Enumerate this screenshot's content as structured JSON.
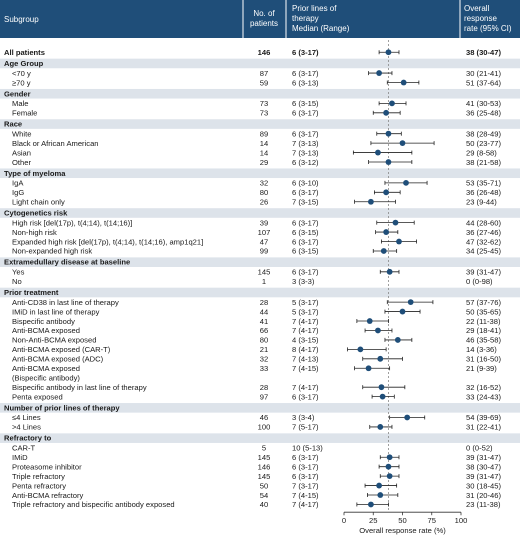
{
  "headers": {
    "subgroup": "Subgroup",
    "patients": [
      "No. of",
      "patients"
    ],
    "therapy": [
      "Prior lines of",
      "therapy",
      "Median (Range)"
    ],
    "orr": [
      "Overall",
      "response",
      "rate (95% CI)"
    ]
  },
  "colors": {
    "header_bg": "#1f4e79",
    "section_bg": "#dde3ea",
    "marker": "#1f4e79",
    "ci": "#222222"
  },
  "chart_data": {
    "type": "forest",
    "xlabel": "Overall response rate (%)",
    "xlim": [
      0,
      100
    ],
    "xticks": [
      0,
      25,
      50,
      75,
      100
    ],
    "reference_line": 38,
    "rows": [
      {
        "kind": "overall",
        "label": "All patients",
        "n": "146",
        "median": "6 (3-17)",
        "orr": "38 (30-47)",
        "est": 38,
        "lo": 30,
        "hi": 47
      },
      {
        "kind": "section",
        "label": "Age Group"
      },
      {
        "kind": "item",
        "label": "<70 y",
        "n": "87",
        "median": "6 (3-17)",
        "orr": "30 (21-41)",
        "est": 30,
        "lo": 21,
        "hi": 41
      },
      {
        "kind": "item",
        "label": "≥70 y",
        "n": "59",
        "median": "6 (3-13)",
        "orr": "51 (37-64)",
        "est": 51,
        "lo": 37,
        "hi": 64
      },
      {
        "kind": "section",
        "label": "Gender"
      },
      {
        "kind": "item",
        "label": "Male",
        "n": "73",
        "median": "6 (3-15)",
        "orr": "41 (30-53)",
        "est": 41,
        "lo": 30,
        "hi": 53
      },
      {
        "kind": "item",
        "label": "Female",
        "n": "73",
        "median": "6 (3-17)",
        "orr": "36 (25-48)",
        "est": 36,
        "lo": 25,
        "hi": 48
      },
      {
        "kind": "section",
        "label": "Race"
      },
      {
        "kind": "item",
        "label": "White",
        "n": "89",
        "median": "6 (3-17)",
        "orr": "38 (28-49)",
        "est": 38,
        "lo": 28,
        "hi": 49
      },
      {
        "kind": "item",
        "label": "Black or African American",
        "n": "14",
        "median": "7 (3-13)",
        "orr": "50 (23-77)",
        "est": 50,
        "lo": 23,
        "hi": 77
      },
      {
        "kind": "item",
        "label": "Asian",
        "n": "14",
        "median": "7 (3-13)",
        "orr": "29 (8-58)",
        "est": 29,
        "lo": 8,
        "hi": 58
      },
      {
        "kind": "item",
        "label": "Other",
        "n": "29",
        "median": "6 (3-12)",
        "orr": "38 (21-58)",
        "est": 38,
        "lo": 21,
        "hi": 58
      },
      {
        "kind": "section",
        "label": "Type of myeloma"
      },
      {
        "kind": "item",
        "label": "IgA",
        "n": "32",
        "median": "6 (3-10)",
        "orr": "53 (35-71)",
        "est": 53,
        "lo": 35,
        "hi": 71
      },
      {
        "kind": "item",
        "label": "IgG",
        "n": "80",
        "median": "6 (3-17)",
        "orr": "36 (26-48)",
        "est": 36,
        "lo": 26,
        "hi": 48
      },
      {
        "kind": "item",
        "label": "Light chain only",
        "n": "26",
        "median": "7 (3-15)",
        "orr": "23 (9-44)",
        "est": 23,
        "lo": 9,
        "hi": 44
      },
      {
        "kind": "section",
        "label": "Cytogenetics risk"
      },
      {
        "kind": "item",
        "label": "High risk [del(17p), t(4;14), t(14;16)]",
        "n": "39",
        "median": "6 (3-17)",
        "orr": "44 (28-60)",
        "est": 44,
        "lo": 28,
        "hi": 60
      },
      {
        "kind": "item",
        "label": "Non-high risk",
        "n": "107",
        "median": "6 (3-15)",
        "orr": "36 (27-46)",
        "est": 36,
        "lo": 27,
        "hi": 46
      },
      {
        "kind": "item",
        "label": "Expanded high risk [del(17p), t(4;14), t(14;16), amp1q21]",
        "n": "47",
        "median": "6 (3-17)",
        "orr": "47 (32-62)",
        "est": 47,
        "lo": 32,
        "hi": 62
      },
      {
        "kind": "item",
        "label": "Non-expanded high risk",
        "n": "99",
        "median": "6 (3-15)",
        "orr": "34 (25-45)",
        "est": 34,
        "lo": 25,
        "hi": 45
      },
      {
        "kind": "section",
        "label": "Extramedullary disease at baseline"
      },
      {
        "kind": "item",
        "label": "Yes",
        "n": "145",
        "median": "6 (3-17)",
        "orr": "39 (31-47)",
        "est": 39,
        "lo": 31,
        "hi": 47
      },
      {
        "kind": "item",
        "label": "No",
        "n": "1",
        "median": "3 (3-3)",
        "orr": "0 (0-98)",
        "est": null,
        "lo": null,
        "hi": null
      },
      {
        "kind": "section",
        "label": "Prior treatment"
      },
      {
        "kind": "item",
        "label": "Anti-CD38 in last line of therapy",
        "n": "28",
        "median": "5 (3-17)",
        "orr": "57 (37-76)",
        "est": 57,
        "lo": 37,
        "hi": 76
      },
      {
        "kind": "item",
        "label": "IMiD in last line of therapy",
        "n": "44",
        "median": "5 (3-17)",
        "orr": "50 (35-65)",
        "est": 50,
        "lo": 35,
        "hi": 65
      },
      {
        "kind": "item",
        "label": "Bispecific antibody",
        "n": "41",
        "median": "7 (4-17)",
        "orr": "22 (11-38)",
        "est": 22,
        "lo": 11,
        "hi": 38
      },
      {
        "kind": "item",
        "label": "Anti-BCMA exposed",
        "n": "66",
        "median": "7 (4-17)",
        "orr": "29 (18-41)",
        "est": 29,
        "lo": 18,
        "hi": 41
      },
      {
        "kind": "item",
        "label": "Non-Anti-BCMA exposed",
        "n": "80",
        "median": "4 (3-15)",
        "orr": "46 (35-58)",
        "est": 46,
        "lo": 35,
        "hi": 58
      },
      {
        "kind": "item",
        "label": "Anti-BCMA exposed (CAR-T)",
        "n": "21",
        "median": "8 (4-17)",
        "orr": "14 (3-36)",
        "est": 14,
        "lo": 3,
        "hi": 36
      },
      {
        "kind": "item",
        "label": "Anti-BCMA exposed (ADC)",
        "n": "32",
        "median": "7 (4-13)",
        "orr": "31 (16-50)",
        "est": 31,
        "lo": 16,
        "hi": 50
      },
      {
        "kind": "item",
        "label": "Anti-BCMA exposed",
        "label2": "(Bispecific antibody)",
        "n": "33",
        "median": "7 (4-15)",
        "orr": "21 (9-39)",
        "est": 21,
        "lo": 9,
        "hi": 39
      },
      {
        "kind": "item",
        "label": "Bispecific antibody in last line of therapy",
        "n": "28",
        "median": "7 (4-17)",
        "orr": "32 (16-52)",
        "est": 32,
        "lo": 16,
        "hi": 52
      },
      {
        "kind": "item",
        "label": "Penta exposed",
        "n": "97",
        "median": "6 (3-17)",
        "orr": "33 (24-43)",
        "est": 33,
        "lo": 24,
        "hi": 43
      },
      {
        "kind": "section",
        "label": "Number of prior lines of therapy"
      },
      {
        "kind": "item",
        "label": "≤4 Lines",
        "n": "46",
        "median": "3 (3-4)",
        "orr": "54 (39-69)",
        "est": 54,
        "lo": 39,
        "hi": 69
      },
      {
        "kind": "item",
        "label": ">4 Lines",
        "n": "100",
        "median": "7 (5-17)",
        "orr": "31 (22-41)",
        "est": 31,
        "lo": 22,
        "hi": 41
      },
      {
        "kind": "section",
        "label": "Refractory to"
      },
      {
        "kind": "item",
        "label": "CAR-T",
        "n": "5",
        "median": "10 (5-13)",
        "orr": "0 (0-52)",
        "est": null,
        "lo": null,
        "hi": null
      },
      {
        "kind": "item",
        "label": "IMiD",
        "n": "145",
        "median": "6 (3-17)",
        "orr": "39 (31-47)",
        "est": 39,
        "lo": 31,
        "hi": 47
      },
      {
        "kind": "item",
        "label": "Proteasome inhibitor",
        "n": "146",
        "median": "6 (3-17)",
        "orr": "38 (30-47)",
        "est": 38,
        "lo": 30,
        "hi": 47
      },
      {
        "kind": "item",
        "label": "Triple refractory",
        "n": "145",
        "median": "6 (3-17)",
        "orr": "39 (31-47)",
        "est": 39,
        "lo": 31,
        "hi": 47
      },
      {
        "kind": "item",
        "label": "Penta refractory",
        "n": "50",
        "median": "7 (3-17)",
        "orr": "30 (18-45)",
        "est": 30,
        "lo": 18,
        "hi": 45
      },
      {
        "kind": "item",
        "label": "Anti-BCMA refractory",
        "n": "54",
        "median": "7 (4-15)",
        "orr": "31 (20-46)",
        "est": 31,
        "lo": 20,
        "hi": 46
      },
      {
        "kind": "item",
        "label": "Triple refractory and bispecific antibody exposed",
        "n": "40",
        "median": "7 (4-17)",
        "orr": "23 (11-38)",
        "est": 23,
        "lo": 11,
        "hi": 38
      }
    ]
  }
}
